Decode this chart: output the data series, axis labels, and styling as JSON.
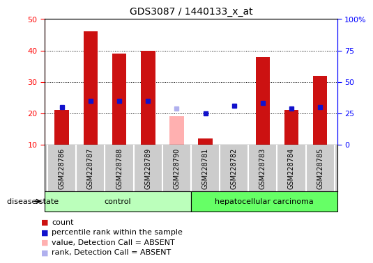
{
  "title": "GDS3087 / 1440133_x_at",
  "samples": [
    "GSM228786",
    "GSM228787",
    "GSM228788",
    "GSM228789",
    "GSM228790",
    "GSM228781",
    "GSM228782",
    "GSM228783",
    "GSM228784",
    "GSM228785"
  ],
  "counts": [
    21,
    46,
    39,
    40,
    null,
    12,
    null,
    38,
    21,
    32
  ],
  "percentile_ranks": [
    30,
    35,
    35,
    35,
    null,
    25,
    31,
    33,
    29,
    30
  ],
  "absent_values": [
    null,
    null,
    null,
    null,
    19,
    null,
    null,
    null,
    null,
    null
  ],
  "absent_ranks": [
    null,
    null,
    null,
    null,
    29,
    null,
    null,
    null,
    null,
    null
  ],
  "ylim_left": [
    10,
    50
  ],
  "ylim_right": [
    0,
    100
  ],
  "yticks_left": [
    10,
    20,
    30,
    40,
    50
  ],
  "yticks_right": [
    0,
    25,
    50,
    75,
    100
  ],
  "ytick_labels_right": [
    "0",
    "25",
    "50",
    "75",
    "100%"
  ],
  "bar_color": "#cc1111",
  "absent_bar_color": "#ffb0b0",
  "dot_color": "#1111cc",
  "absent_dot_color": "#b0b0ee",
  "control_bg": "#bbffbb",
  "cancer_bg": "#66ff66",
  "sample_bg": "#cccccc",
  "group_label_control": "control",
  "group_label_cancer": "hepatocellular carcinoma",
  "disease_state_label": "disease state",
  "legend_items": [
    "count",
    "percentile rank within the sample",
    "value, Detection Call = ABSENT",
    "rank, Detection Call = ABSENT"
  ],
  "legend_colors": [
    "#cc1111",
    "#1111cc",
    "#ffb0b0",
    "#b0b0ee"
  ],
  "bar_width": 0.5,
  "n_control": 5,
  "n_cancer": 5
}
